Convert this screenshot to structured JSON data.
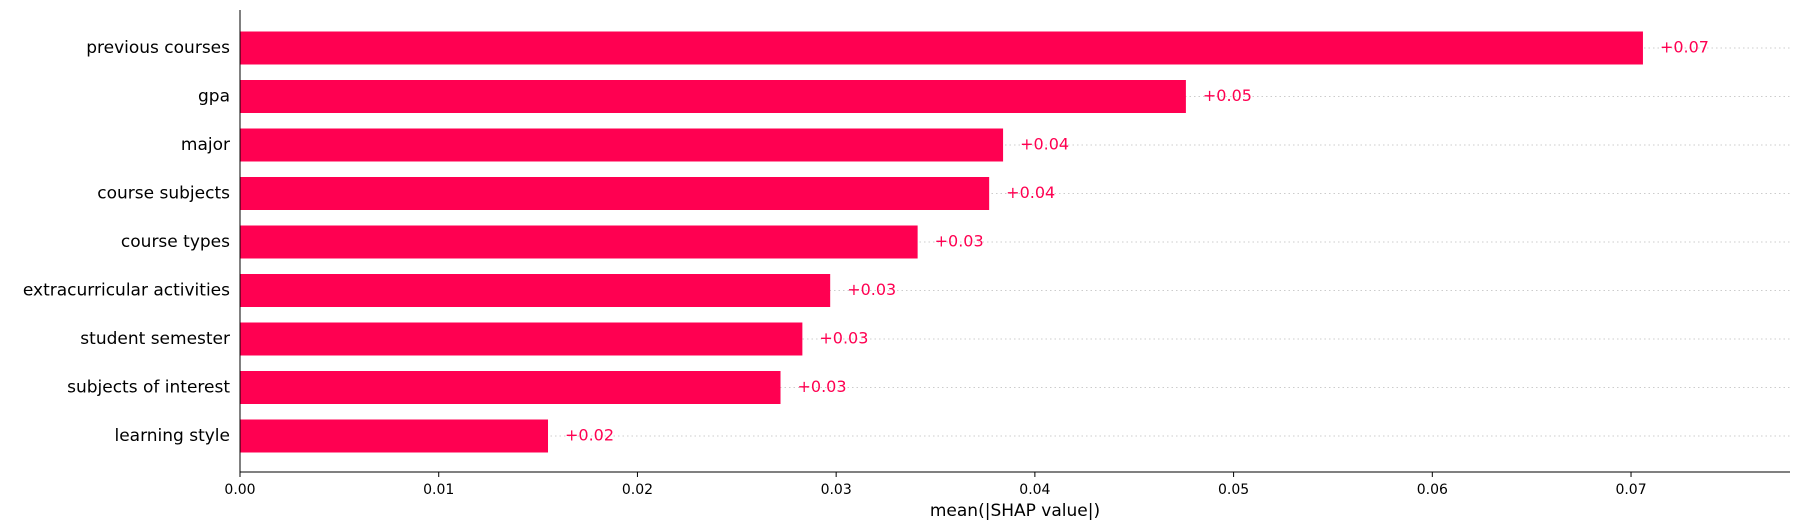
{
  "chart_data": {
    "type": "bar",
    "orientation": "horizontal",
    "categories": [
      "previous courses",
      "gpa",
      "major",
      "course subjects",
      "course types",
      "extracurricular activities",
      "student semester",
      "subjects of interest",
      "learning style"
    ],
    "values": [
      0.0706,
      0.0476,
      0.0384,
      0.0377,
      0.0341,
      0.0297,
      0.0283,
      0.0272,
      0.0155
    ],
    "value_labels": [
      "+0.07",
      "+0.05",
      "+0.04",
      "+0.04",
      "+0.03",
      "+0.03",
      "+0.03",
      "+0.03",
      "+0.02"
    ],
    "xlabel": "mean(|SHAP value|)",
    "ylabel": "",
    "xlim": [
      0,
      0.078
    ],
    "xticks": [
      0.0,
      0.01,
      0.02,
      0.03,
      0.04,
      0.05,
      0.06,
      0.07
    ],
    "xtick_labels": [
      "0.00",
      "0.01",
      "0.02",
      "0.03",
      "0.04",
      "0.05",
      "0.06",
      "0.07"
    ],
    "grid": "dotted row guides",
    "colors": {
      "bar": "#ff0051",
      "value_label": "#ff0051",
      "axis": "#000000",
      "guide": "#cccccc"
    }
  }
}
